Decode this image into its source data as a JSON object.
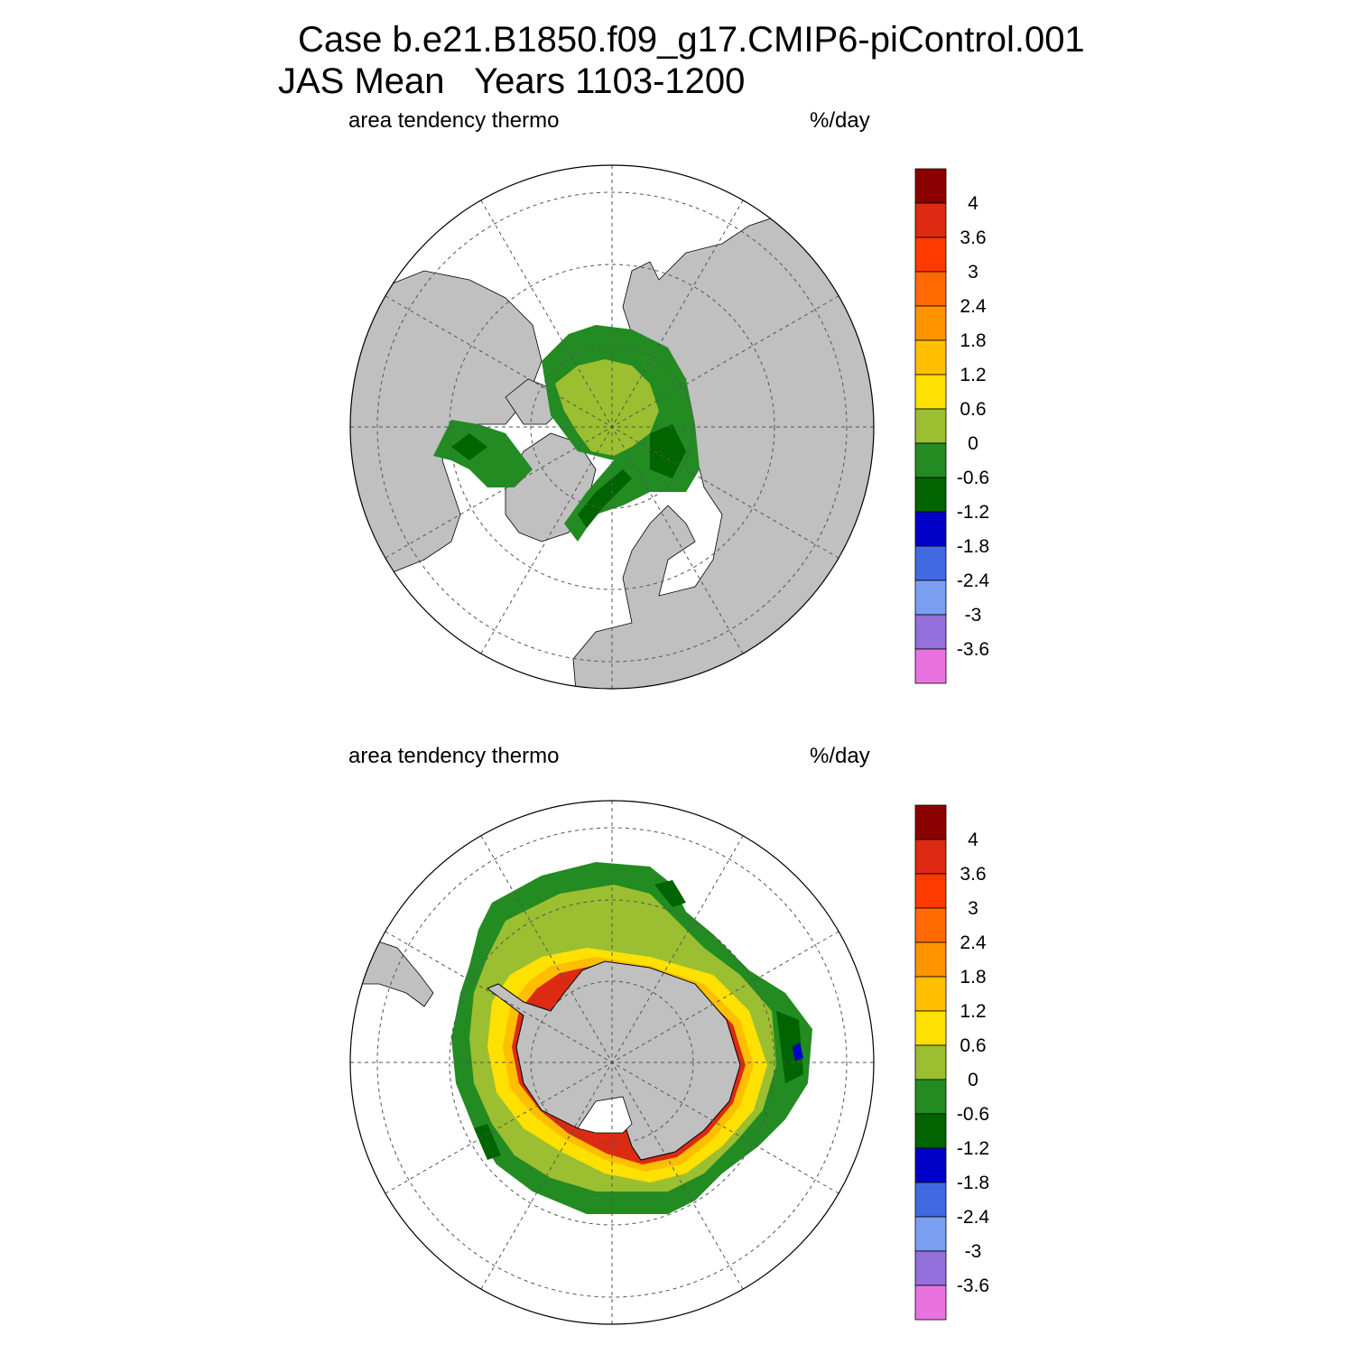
{
  "title": {
    "line1": "Case b.e21.B1850.f09_g17.CMIP6-piControl.001",
    "line2": "JAS Mean   Years 1103-1200"
  },
  "colorbar": {
    "colors": [
      "#8b0000",
      "#dd2a12",
      "#ff3a00",
      "#ff6a00",
      "#ff9400",
      "#ffbf00",
      "#ffe100",
      "#9bbf30",
      "#228b22",
      "#006400",
      "#0000c8",
      "#4169e1",
      "#7b9ff0",
      "#9370db",
      "#e873de"
    ],
    "labels": [
      "4",
      "3.6",
      "3",
      "2.4",
      "1.8",
      "1.2",
      "0.6",
      "0",
      "-0.6",
      "-1.2",
      "-1.8",
      "-2.4",
      "-3",
      "-3.6"
    ]
  },
  "panels": [
    {
      "id": "north",
      "left_label": "area tendency thermo",
      "right_label": "%/day"
    },
    {
      "id": "south",
      "left_label": "area tendency thermo",
      "right_label": "%/day"
    }
  ],
  "colors": {
    "land": "#c0c0c0",
    "ocean": "#ffffff",
    "grid": "#555555"
  }
}
